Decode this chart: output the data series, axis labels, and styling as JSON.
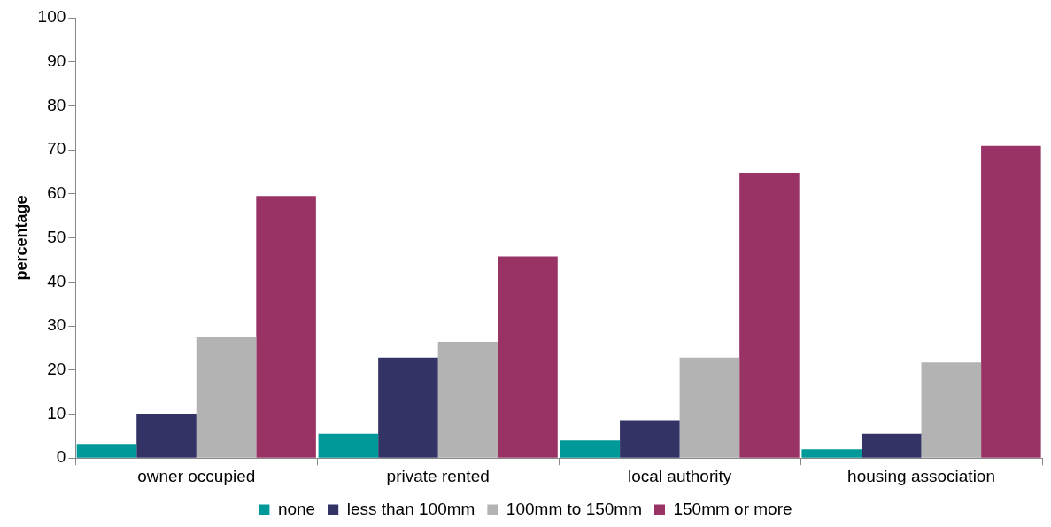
{
  "chart_data": {
    "type": "bar",
    "ylabel": "percentage",
    "categories": [
      "owner occupied",
      "private rented",
      "local authority",
      "housing association"
    ],
    "series": [
      {
        "name": "none",
        "color": "#009999",
        "values": [
          3.2,
          5.5,
          4,
          2
        ]
      },
      {
        "name": "less than 100mm",
        "color": "#333366",
        "values": [
          10.1,
          22.8,
          8.6,
          5.5
        ]
      },
      {
        "name": "100mm to 150mm",
        "color": "#b3b3b3",
        "values": [
          27.6,
          26.4,
          22.8,
          21.7
        ]
      },
      {
        "name": "150mm or more",
        "color": "#993366",
        "values": [
          59.5,
          45.8,
          64.8,
          70.9
        ]
      }
    ],
    "ylim": [
      0,
      100
    ],
    "yticks": [
      0,
      10,
      20,
      30,
      40,
      50,
      60,
      70,
      80,
      90,
      100
    ],
    "grid": false,
    "legend": "bottom"
  }
}
